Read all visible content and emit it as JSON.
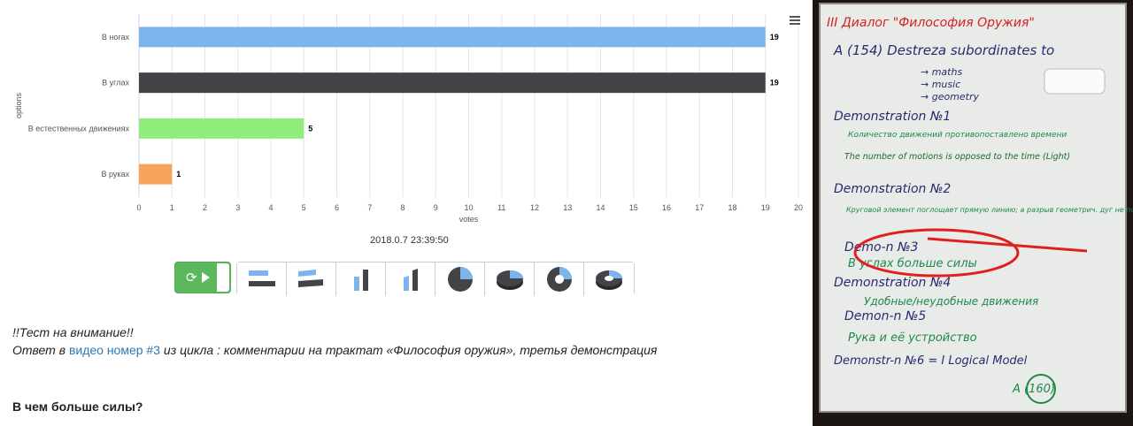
{
  "chart_data": {
    "type": "bar",
    "orientation": "horizontal",
    "categories": [
      "В ногах",
      "В углах",
      "В естественных движениях",
      "В руках"
    ],
    "values": [
      19,
      19,
      5,
      1
    ],
    "colors": [
      "#7cb5ec",
      "#434348",
      "#90ed7d",
      "#f7a35c"
    ],
    "xlabel": "votes",
    "ylabel": "options",
    "xlim": [
      0,
      20
    ],
    "xticks": [
      0,
      1,
      2,
      3,
      4,
      5,
      6,
      7,
      8,
      9,
      10,
      11,
      12,
      13,
      14,
      15,
      16,
      17,
      18,
      19,
      20
    ],
    "grid": true
  },
  "timestamp": "2018.0.7 23:39:50",
  "toolbar": {
    "accent": "#5cb85c",
    "refresh_icon": "refresh-icon",
    "play_icon": "play-icon",
    "chart_types": [
      "bar-chart-icon",
      "bar-3d-icon",
      "column-chart-icon",
      "column-3d-icon",
      "pie-chart-icon",
      "pie-3d-icon",
      "donut-chart-icon",
      "donut-3d-icon"
    ]
  },
  "post": {
    "intro": "!!Тест на внимание!!",
    "answer_prefix": "Ответ в",
    "answer_link": "видео номер #3",
    "answer_suffix": "из цикла : комментарии на трактат «Философия оружия», третья демонстрация",
    "question": "В чем больше силы?"
  },
  "whiteboard": {
    "title": "III Диалог \"Философия Оружия\"",
    "lines": [
      "A (154) Destreza subordinates to",
      "→ maths",
      "→ music",
      "→ geometry",
      "Demonstration №1",
      "Количество движений противопоставлено времени",
      "The number of motions is opposed to the time (Light)",
      "Demonstration №2",
      "Круговой элемент поглощает прямую линию; а разрыв геометрич. дуг не позволяет",
      "Demo-n №3",
      "В углах больше силы",
      "Demonstration №4",
      "Удобные/неудобные движения",
      "Demon-n №5",
      "Рука и её устройство",
      "Demonstr-n №6 = I Logical Model",
      "A (160)"
    ]
  }
}
